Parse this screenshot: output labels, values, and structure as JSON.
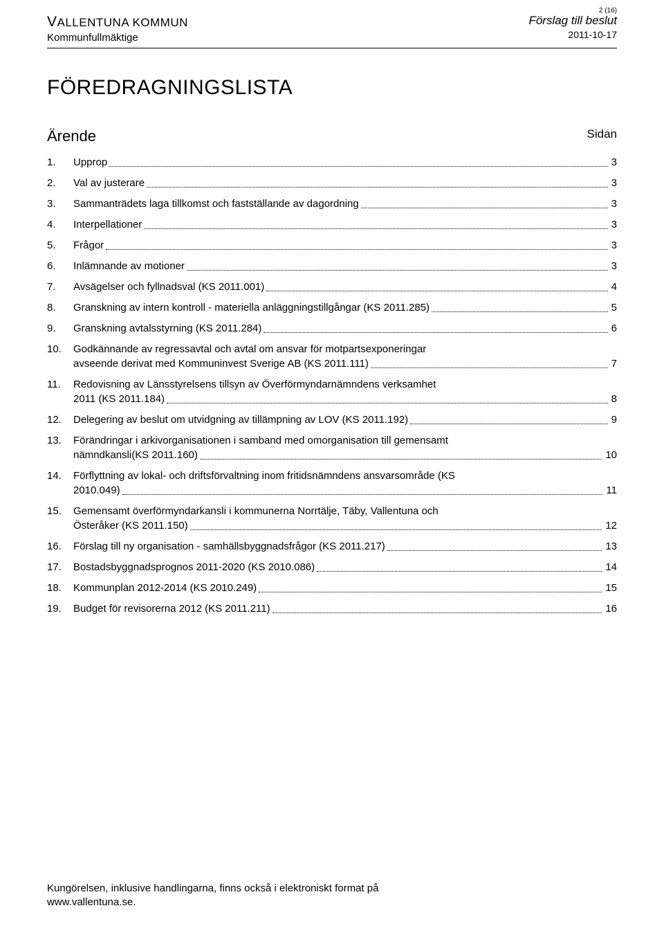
{
  "page": {
    "current": "2",
    "total": "16",
    "page_label": "2 (16)"
  },
  "header": {
    "org_line": "VALLENTUNA KOMMUN",
    "committee": "Kommunfullmäktige",
    "proposal": "Förslag till beslut",
    "date": "2011-10-17"
  },
  "title": "FÖREDRAGNINGSLISTA",
  "toc_head": {
    "left": "Ärende",
    "right": "Sidan"
  },
  "toc": [
    {
      "n": "1.",
      "label": "Upprop",
      "page": "3"
    },
    {
      "n": "2.",
      "label": "Val av justerare",
      "page": "3"
    },
    {
      "n": "3.",
      "label": "Sammanträdets laga tillkomst och fastställande av dagordning",
      "page": "3"
    },
    {
      "n": "4.",
      "label": "Interpellationer",
      "page": "3"
    },
    {
      "n": "5.",
      "label": "Frågor",
      "page": "3"
    },
    {
      "n": "6.",
      "label": "Inlämnande av motioner",
      "page": "3"
    },
    {
      "n": "7.",
      "label": "Avsägelser och fyllnadsval (KS 2011.001)",
      "page": "4"
    },
    {
      "n": "8.",
      "label": "Granskning av intern kontroll - materiella anläggningstillgångar (KS 2011.285)",
      "page": "5"
    },
    {
      "n": "9.",
      "label": "Granskning avtalsstyrning (KS 2011.284)",
      "page": "6"
    },
    {
      "n": "10.",
      "label1": "Godkännande av regressavtal och avtal om ansvar för motpartsexponeringar",
      "label2": "avseende derivat med Kommuninvest Sverige AB (KS 2011.111)",
      "page": "7",
      "multi": true
    },
    {
      "n": "11.",
      "label1": "Redovisning av Länsstyrelsens tillsyn av Överförmyndarnämndens verksamhet",
      "label2": "2011 (KS 2011.184)",
      "page": "8",
      "multi": true
    },
    {
      "n": "12.",
      "label": "Delegering av beslut om utvidgning av tillämpning av LOV (KS 2011.192)",
      "page": "9"
    },
    {
      "n": "13.",
      "label1": "Förändringar i arkivorganisationen i samband med omorganisation till gemensamt",
      "label2": "nämndkansli(KS 2011.160)",
      "page": "10",
      "multi": true
    },
    {
      "n": "14.",
      "label1": "Förflyttning av lokal- och driftsförvaltning inom fritidsnämndens ansvarsområde (KS",
      "label2": "2010.049)",
      "page": "11",
      "multi": true
    },
    {
      "n": "15.",
      "label1": "Gemensamt överförmyndarkansli i kommunerna Norrtälje, Täby, Vallentuna och",
      "label2": "Österåker (KS 2011.150)",
      "page": "12",
      "multi": true
    },
    {
      "n": "16.",
      "label": "Förslag till ny organisation - samhällsbyggnadsfrågor (KS 2011.217)",
      "page": "13"
    },
    {
      "n": "17.",
      "label": "Bostadsbyggnadsprognos 2011-2020 (KS 2010.086)",
      "page": "14"
    },
    {
      "n": "18.",
      "label": "Kommunplan 2012-2014 (KS 2010.249)",
      "page": "15"
    },
    {
      "n": "19.",
      "label": "Budget för revisorerna 2012 (KS 2011.211)",
      "page": "16"
    }
  ],
  "footer": {
    "line1": "Kungörelsen, inklusive handlingarna, finns också i elektroniskt format på",
    "line2": "www.vallentuna.se."
  }
}
